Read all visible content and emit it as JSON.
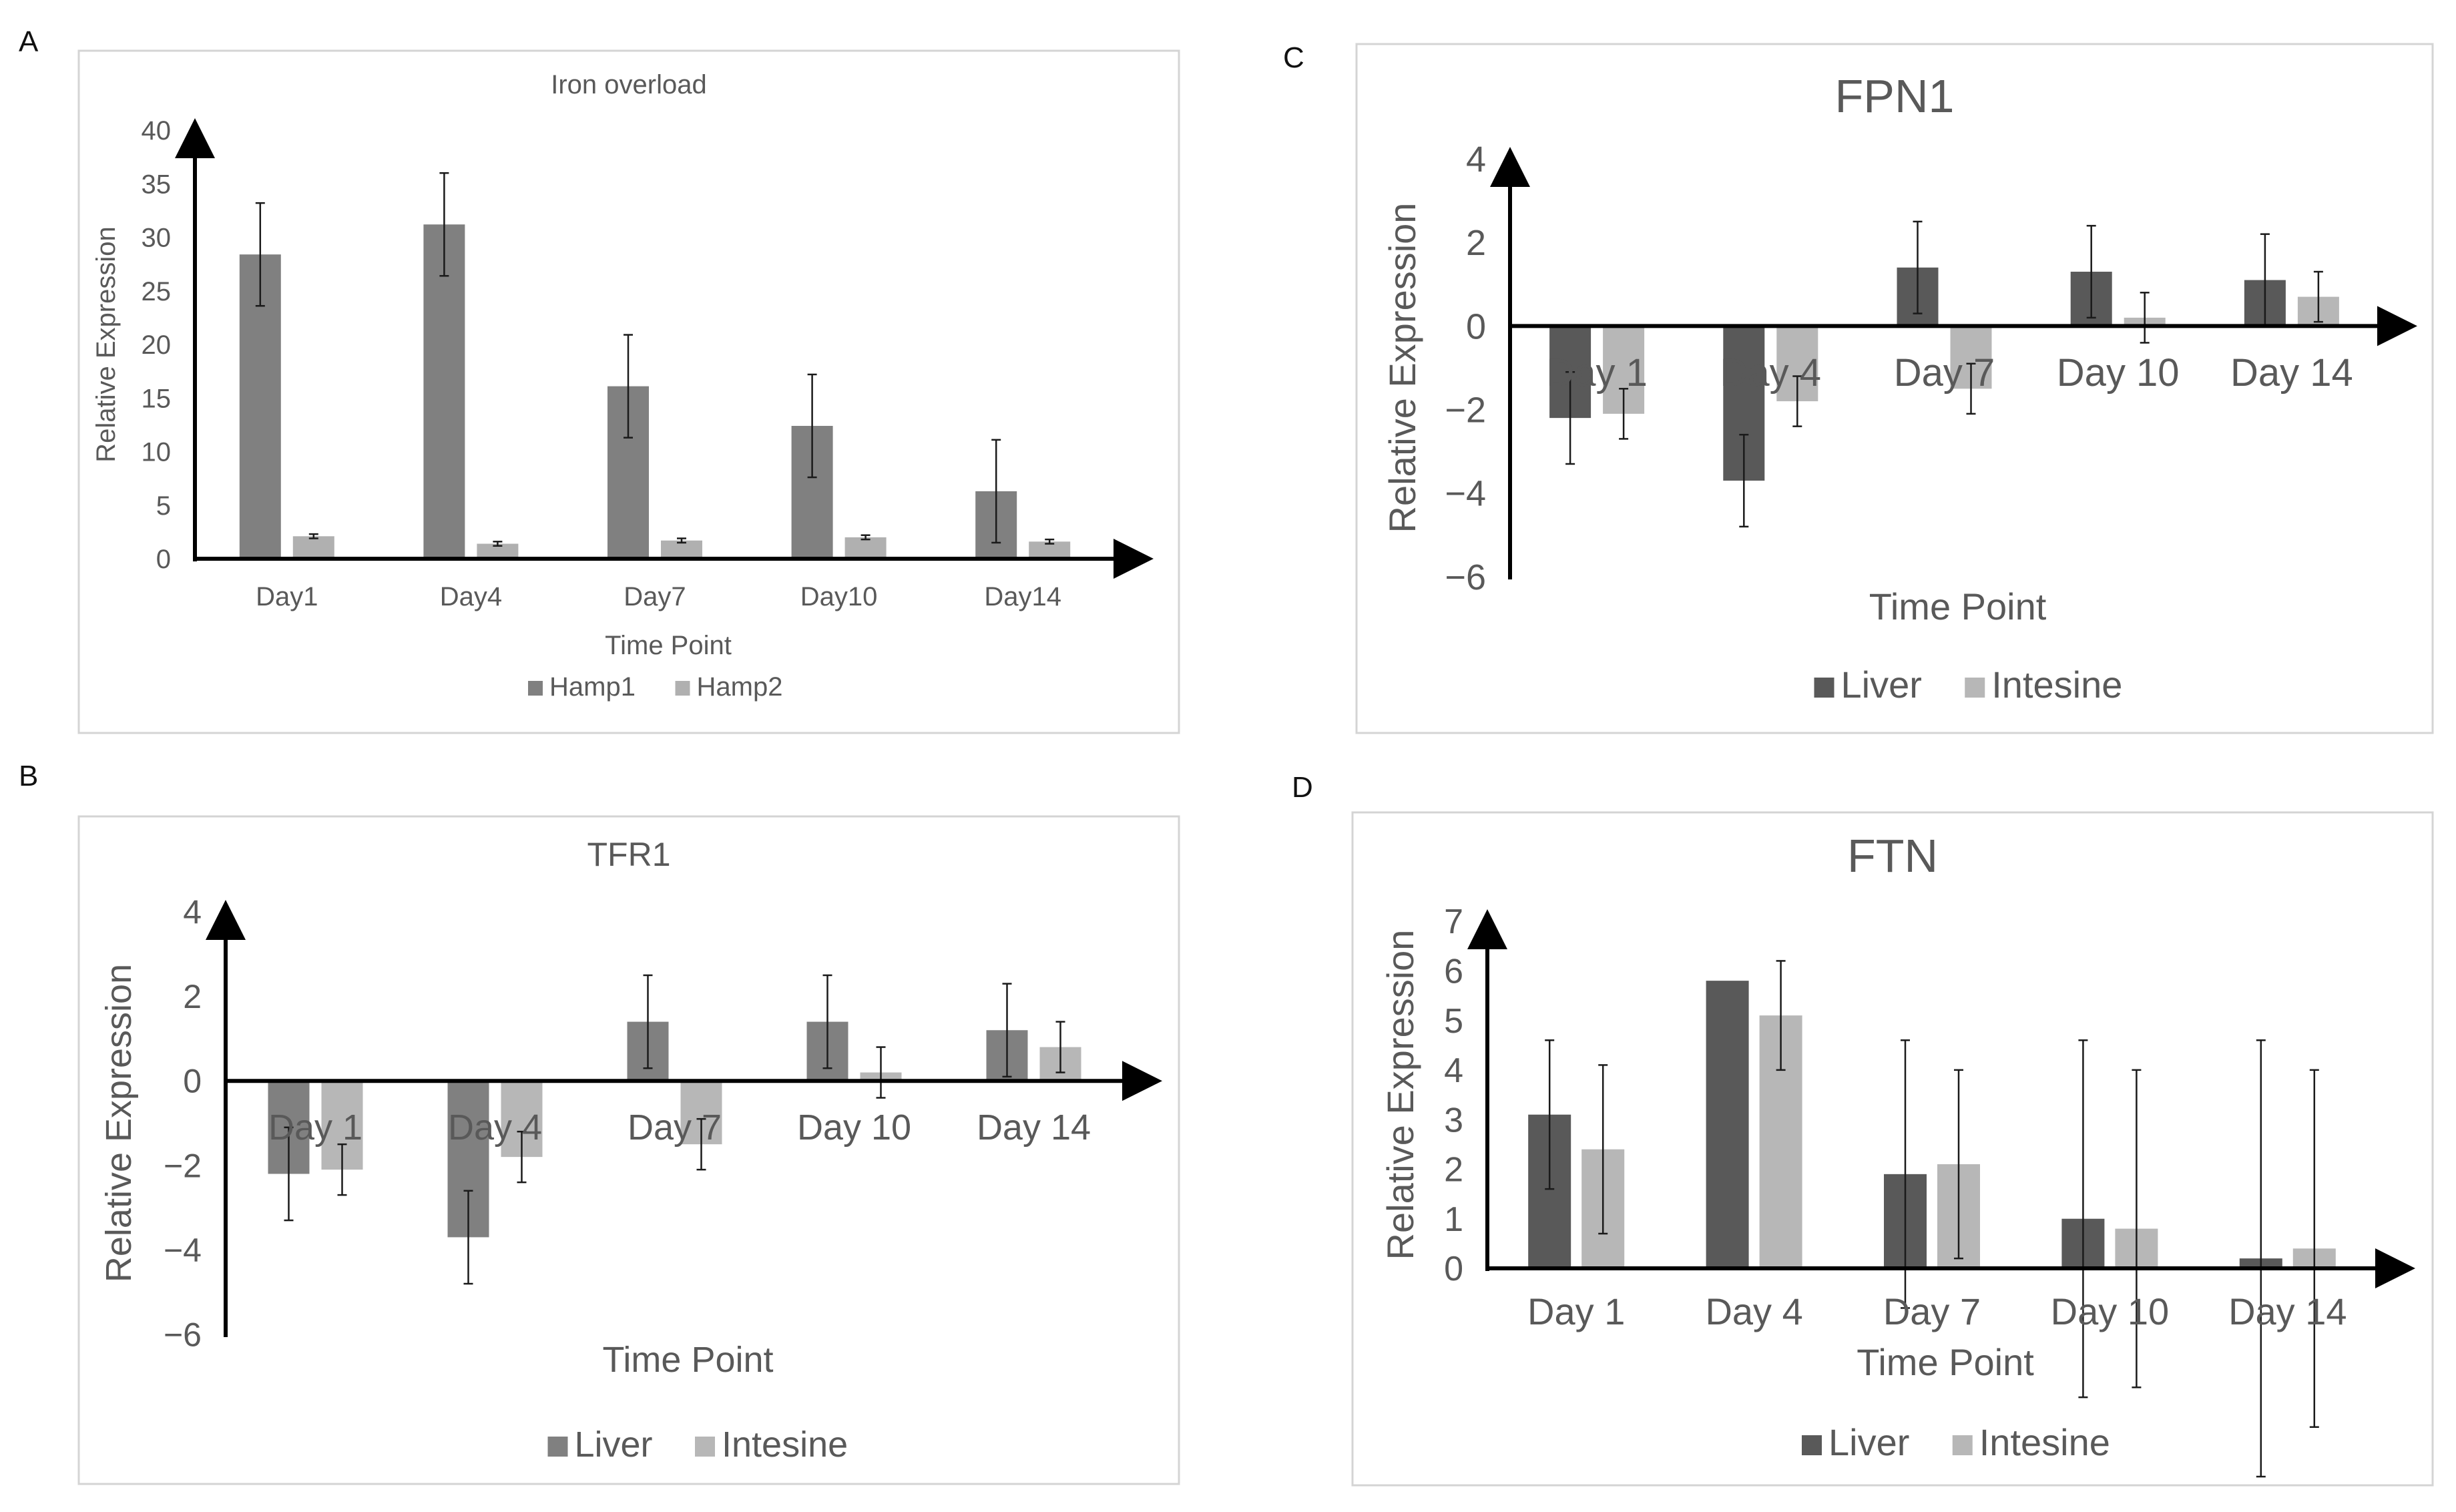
{
  "panel_labels": [
    "A",
    "B",
    "C",
    "D"
  ],
  "colors": {
    "frame": "#d4d4d4",
    "axis": "#000000",
    "text": "#595959",
    "errorbar": "#1a1a1a",
    "series_mid_dark": "#808080",
    "series_light": "#b0b0b0",
    "series_dark": "#595959",
    "series_light_alt": "#b7b7b7"
  },
  "chart_data": [
    {
      "id": "A",
      "type": "bar",
      "title": "Iron overload",
      "xlabel": "Time Point",
      "ylabel": "Relative Expression",
      "categories": [
        "Day1",
        "Day4",
        "Day7",
        "Day10",
        "Day14"
      ],
      "ylim": [
        0,
        40
      ],
      "yticks": [
        0,
        5,
        10,
        15,
        20,
        25,
        30,
        35,
        40
      ],
      "yticklabels": [
        "0",
        "5",
        "10",
        "15",
        "20",
        "25",
        "30",
        "35",
        "40"
      ],
      "series": [
        {
          "name": "Hamp1",
          "color": "#808080",
          "values": [
            28.4,
            31.2,
            16.1,
            12.4,
            6.3
          ],
          "errors": [
            4.8,
            4.8,
            4.8,
            4.8,
            4.8
          ]
        },
        {
          "name": "Hamp2",
          "color": "#b0b0b0",
          "values": [
            2.1,
            1.4,
            1.7,
            2.0,
            1.6
          ],
          "errors": [
            0.2,
            0.2,
            0.2,
            0.2,
            0.2
          ]
        }
      ],
      "legend_position": "bottom"
    },
    {
      "id": "B",
      "type": "bar",
      "title": "TFR1",
      "xlabel": "Time Point",
      "ylabel": "Relative Expression",
      "categories": [
        "Day 1",
        "Day 4",
        "Day 7",
        "Day 10",
        "Day 14"
      ],
      "ylim": [
        -6,
        4
      ],
      "yticks": [
        -6,
        -4,
        -2,
        0,
        2,
        4
      ],
      "yticklabels": [
        "−6",
        "−4",
        "−2",
        "0",
        "2",
        "4"
      ],
      "series": [
        {
          "name": "Liver",
          "color": "#808080",
          "values": [
            -2.2,
            -3.7,
            1.4,
            1.4,
            1.2
          ],
          "errors": [
            1.1,
            1.1,
            1.1,
            1.1,
            1.1
          ]
        },
        {
          "name": "Intesine",
          "color": "#b7b7b7",
          "values": [
            -2.1,
            -1.8,
            -1.5,
            0.2,
            0.8
          ],
          "errors": [
            0.6,
            0.6,
            0.6,
            0.6,
            0.6
          ]
        }
      ],
      "legend_position": "bottom"
    },
    {
      "id": "C",
      "type": "bar",
      "title": "FPN1",
      "xlabel": "Time Point",
      "ylabel": "Relative Expression",
      "categories": [
        "Day 1",
        "Day 4",
        "Day 7",
        "Day 10",
        "Day 14"
      ],
      "ylim": [
        -6,
        4
      ],
      "yticks": [
        -6,
        -4,
        -2,
        0,
        2,
        4
      ],
      "yticklabels": [
        "−6",
        "−4",
        "−2",
        "0",
        "2",
        "4"
      ],
      "series": [
        {
          "name": "Liver",
          "color": "#595959",
          "values": [
            -2.2,
            -3.7,
            1.4,
            1.3,
            1.1
          ],
          "errors": [
            1.1,
            1.1,
            1.1,
            1.1,
            1.1
          ]
        },
        {
          "name": "Intesine",
          "color": "#b7b7b7",
          "values": [
            -2.1,
            -1.8,
            -1.5,
            0.2,
            0.7
          ],
          "errors": [
            0.6,
            0.6,
            0.6,
            0.6,
            0.6
          ]
        }
      ],
      "legend_position": "bottom"
    },
    {
      "id": "D",
      "type": "bar",
      "title": "FTN",
      "xlabel": "Time Point",
      "ylabel": "Relative Expression",
      "categories": [
        "Day 1",
        "Day 4",
        "Day 7",
        "Day 10",
        "Day 14"
      ],
      "ylim": [
        0,
        7
      ],
      "yticks": [
        0,
        1,
        2,
        3,
        4,
        5,
        6,
        7
      ],
      "yticklabels": [
        "0",
        "1",
        "2",
        "3",
        "4",
        "5",
        "6",
        "7"
      ],
      "series": [
        {
          "name": "Liver",
          "color": "#595959",
          "values": [
            3.1,
            5.8,
            1.9,
            1.0,
            0.2
          ],
          "errors": [
            1.5,
            0.0,
            2.7,
            3.6,
            4.4
          ]
        },
        {
          "name": "Intesine",
          "color": "#b7b7b7",
          "values": [
            2.4,
            5.1,
            2.1,
            0.8,
            0.4
          ],
          "errors": [
            1.7,
            1.1,
            1.9,
            3.2,
            3.6
          ]
        }
      ],
      "legend_position": "bottom"
    }
  ]
}
